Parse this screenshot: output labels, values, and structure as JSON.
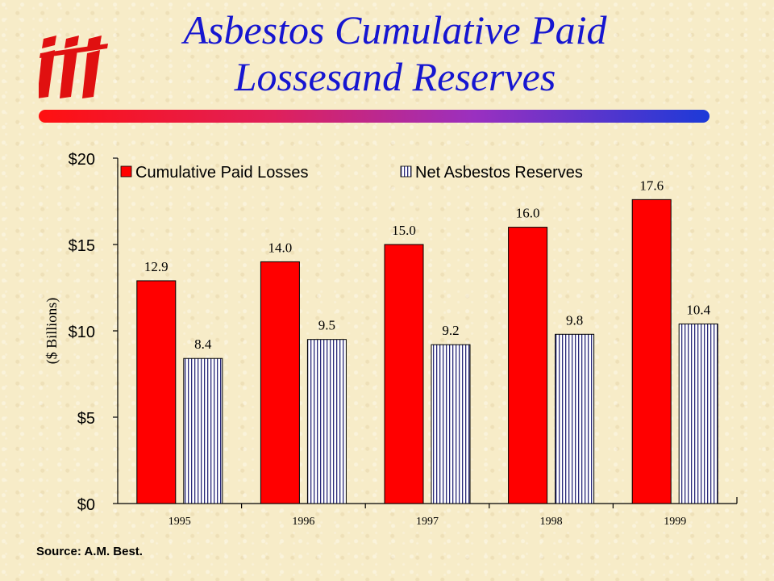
{
  "title_line1": "Asbestos Cumulative Paid",
  "title_line2": "Lossesand Reserves",
  "logo": "iii",
  "source": "Source: A.M. Best.",
  "colors": {
    "title": "#1616d0",
    "paid_bar": "#ff0000",
    "reserve_fill": "#ffffff",
    "reserve_stripe": "#2a2a7a"
  },
  "chart_data": {
    "type": "bar",
    "categories": [
      "1995",
      "1996",
      "1997",
      "1998",
      "1999"
    ],
    "series": [
      {
        "name": "Cumulative Paid Losses",
        "values": [
          12.9,
          14.0,
          15.0,
          16.0,
          17.6
        ],
        "labels": [
          "12.9",
          "14.0",
          "15.0",
          "16.0",
          "17.6"
        ]
      },
      {
        "name": "Net Asbestos Reserves",
        "values": [
          8.4,
          9.5,
          9.2,
          9.8,
          10.4
        ],
        "labels": [
          "8.4",
          "9.5",
          "9.2",
          "9.8",
          "10.4"
        ]
      }
    ],
    "ylabel": "($ Billions)",
    "ylim": [
      0,
      20
    ],
    "yticks": [
      0,
      5,
      10,
      15,
      20
    ],
    "ytick_labels": [
      "$0",
      "$5",
      "$10",
      "$15",
      "$20"
    ],
    "legend_position": "top",
    "grid": false
  }
}
